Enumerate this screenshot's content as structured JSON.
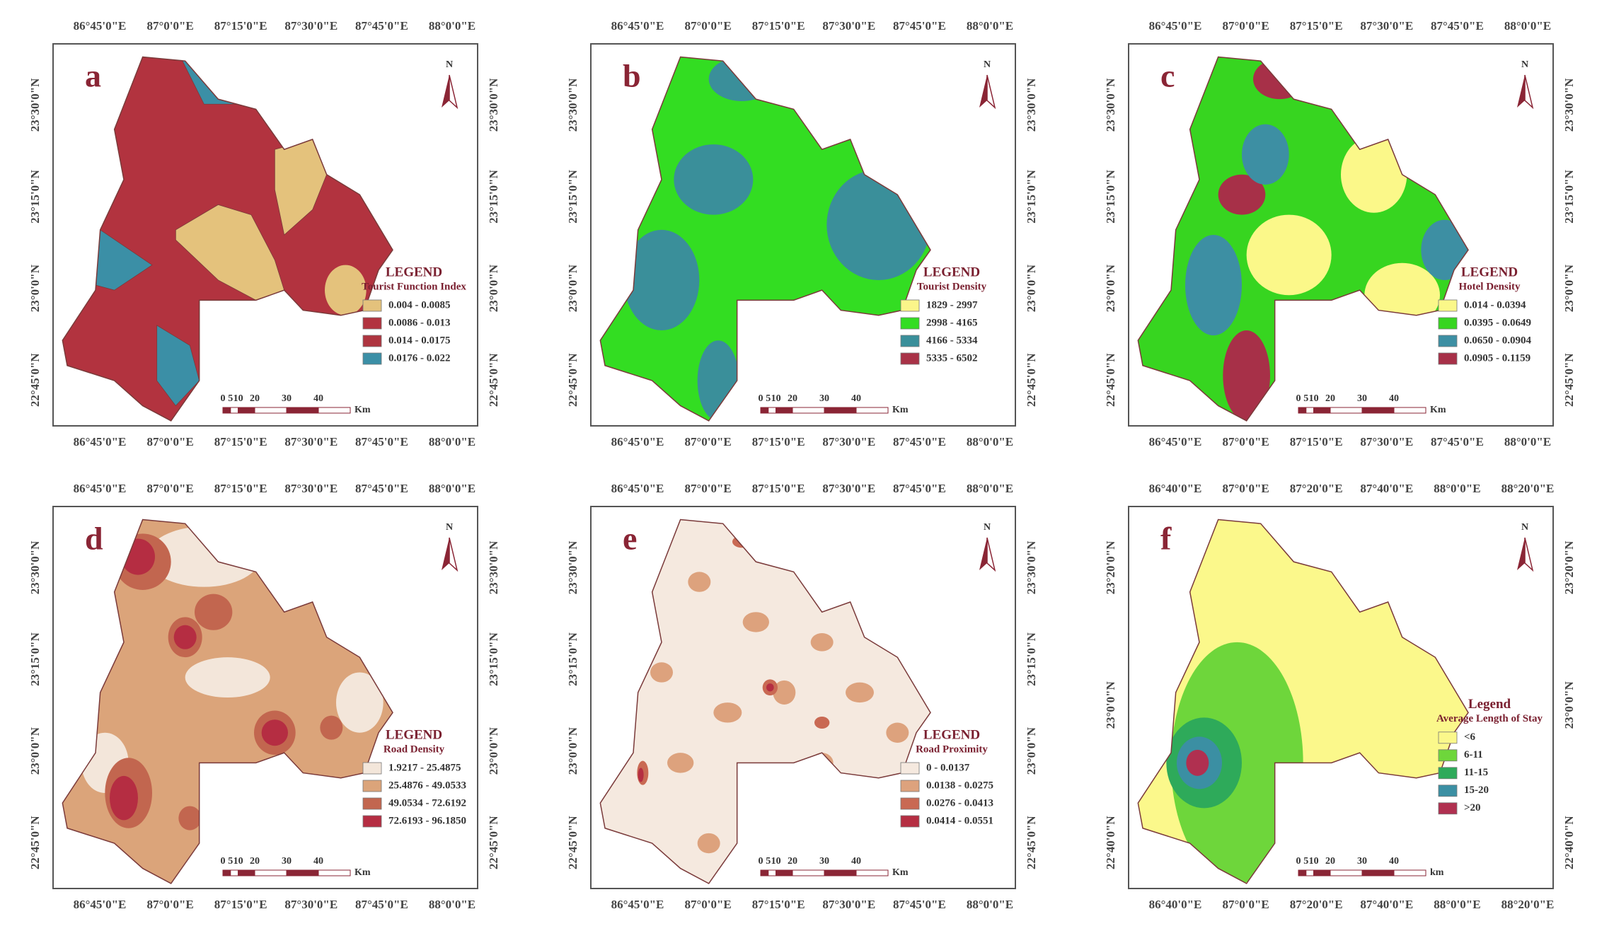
{
  "panels": [
    {
      "panel_label": "a",
      "north": "N",
      "top_ticks": [
        "86°45'0\"E",
        "87°0'0\"E",
        "87°15'0\"E",
        "87°30'0\"E",
        "87°45'0\"E",
        "88°0'0\"E"
      ],
      "side_ticks": [
        "23°30'0\"N",
        "23°15'0\"N",
        "23°0'0\"N",
        "22°45'0\"N"
      ],
      "legend": {
        "title": "LEGEND",
        "subtitle": "Tourist Function Index",
        "items": [
          {
            "label": "0.004 - 0.0085",
            "color": "#e4c27c"
          },
          {
            "label": "0.0086 - 0.013",
            "color": "#b2333f"
          },
          {
            "label": "0.014 - 0.0175",
            "color": "#ae3540"
          },
          {
            "label": "0.0176 - 0.022",
            "color": "#3b8fa6"
          }
        ]
      },
      "scale_labels": [
        "0",
        "5",
        "10",
        "20",
        "30",
        "40"
      ],
      "scale_unit": "Km"
    },
    {
      "panel_label": "b",
      "north": "N",
      "top_ticks": [
        "86°45'0\"E",
        "87°0'0\"E",
        "87°15'0\"E",
        "87°30'0\"E",
        "87°45'0\"E",
        "88°0'0\"E"
      ],
      "side_ticks": [
        "23°30'0\"N",
        "23°15'0\"N",
        "23°0'0\"N",
        "22°45'0\"N"
      ],
      "legend": {
        "title": "LEGEND",
        "subtitle": "Tourist Density",
        "items": [
          {
            "label": "1829 - 2997",
            "color": "#fbf58a"
          },
          {
            "label": "2998 - 4165",
            "color": "#33dd22"
          },
          {
            "label": "4166 - 5334",
            "color": "#3a8f9a"
          },
          {
            "label": "5335 - 6502",
            "color": "#a83247"
          }
        ]
      },
      "scale_labels": [
        "0",
        "5",
        "10",
        "20",
        "30",
        "40"
      ],
      "scale_unit": "Km"
    },
    {
      "panel_label": "c",
      "north": "N",
      "top_ticks": [
        "86°45'0\"E",
        "87°0'0\"E",
        "87°15'0\"E",
        "87°30'0\"E",
        "87°45'0\"E",
        "88°0'0\"E"
      ],
      "side_ticks": [
        "23°30'0\"N",
        "23°15'0\"N",
        "23°0'0\"N",
        "22°45'0\"N"
      ],
      "legend": {
        "title": "LEGEND",
        "subtitle": "Hotel Density",
        "items": [
          {
            "label": "0.014 - 0.0394",
            "color": "#fbf889"
          },
          {
            "label": "0.0395 - 0.0649",
            "color": "#37d520"
          },
          {
            "label": "0.0650 - 0.0904",
            "color": "#3d8fa3"
          },
          {
            "label": "0.0905 - 0.1159",
            "color": "#a73048"
          }
        ]
      },
      "scale_labels": [
        "0",
        "5",
        "10",
        "20",
        "30",
        "40"
      ],
      "scale_unit": "Km"
    },
    {
      "panel_label": "d",
      "north": "N",
      "top_ticks": [
        "86°45'0\"E",
        "87°0'0\"E",
        "87°15'0\"E",
        "87°30'0\"E",
        "87°45'0\"E",
        "88°0'0\"E"
      ],
      "side_ticks": [
        "23°30'0\"N",
        "23°15'0\"N",
        "23°0'0\"N",
        "22°45'0\"N"
      ],
      "legend": {
        "title": "LEGEND",
        "subtitle": "Road Density",
        "items": [
          {
            "label": "1.9217 - 25.4875",
            "color": "#f3e6da"
          },
          {
            "label": "25.4876 - 49.0533",
            "color": "#dba47a"
          },
          {
            "label": "49.0534 - 72.6192",
            "color": "#c2664f"
          },
          {
            "label": "72.6193 - 96.1850",
            "color": "#b52d42"
          }
        ]
      },
      "scale_labels": [
        "0",
        "5",
        "10",
        "20",
        "30",
        "40"
      ],
      "scale_unit": "Km"
    },
    {
      "panel_label": "e",
      "north": "N",
      "top_ticks": [
        "86°45'0\"E",
        "87°0'0\"E",
        "87°15'0\"E",
        "87°30'0\"E",
        "87°45'0\"E",
        "88°0'0\"E"
      ],
      "side_ticks": [
        "23°30'0\"N",
        "23°15'0\"N",
        "23°0'0\"N",
        "22°45'0\"N"
      ],
      "legend": {
        "title": "LEGEND",
        "subtitle": "Road Proximity",
        "items": [
          {
            "label": "0 - 0.0137",
            "color": "#f5e9df"
          },
          {
            "label": "0.0138 - 0.0275",
            "color": "#dda27d"
          },
          {
            "label": "0.0276 - 0.0413",
            "color": "#c96953"
          },
          {
            "label": "0.0414 - 0.0551",
            "color": "#b52e42"
          }
        ]
      },
      "scale_labels": [
        "0",
        "5",
        "10",
        "20",
        "30",
        "40"
      ],
      "scale_unit": "Km"
    },
    {
      "panel_label": "f",
      "north": "N",
      "top_ticks": [
        "86°40'0\"E",
        "87°0'0\"E",
        "87°20'0\"E",
        "87°40'0\"E",
        "88°0'0\"E",
        "88°20'0\"E"
      ],
      "side_ticks": [
        "23°20'0\"N",
        "23°0'0\"N",
        "22°40'0\"N"
      ],
      "legend": {
        "title": "Legend",
        "subtitle": "Average Length of Stay",
        "items": [
          {
            "label": "<6",
            "color": "#fbf88b"
          },
          {
            "label": "6-11",
            "color": "#6ed63b"
          },
          {
            "label": "11-15",
            "color": "#2eaa5a"
          },
          {
            "label": "15-20",
            "color": "#3b8fa3"
          },
          {
            "label": ">20",
            "color": "#b03050"
          }
        ]
      },
      "scale_labels": [
        "0",
        "5",
        "10",
        "20",
        "30",
        "40"
      ],
      "scale_unit": "km"
    }
  ]
}
